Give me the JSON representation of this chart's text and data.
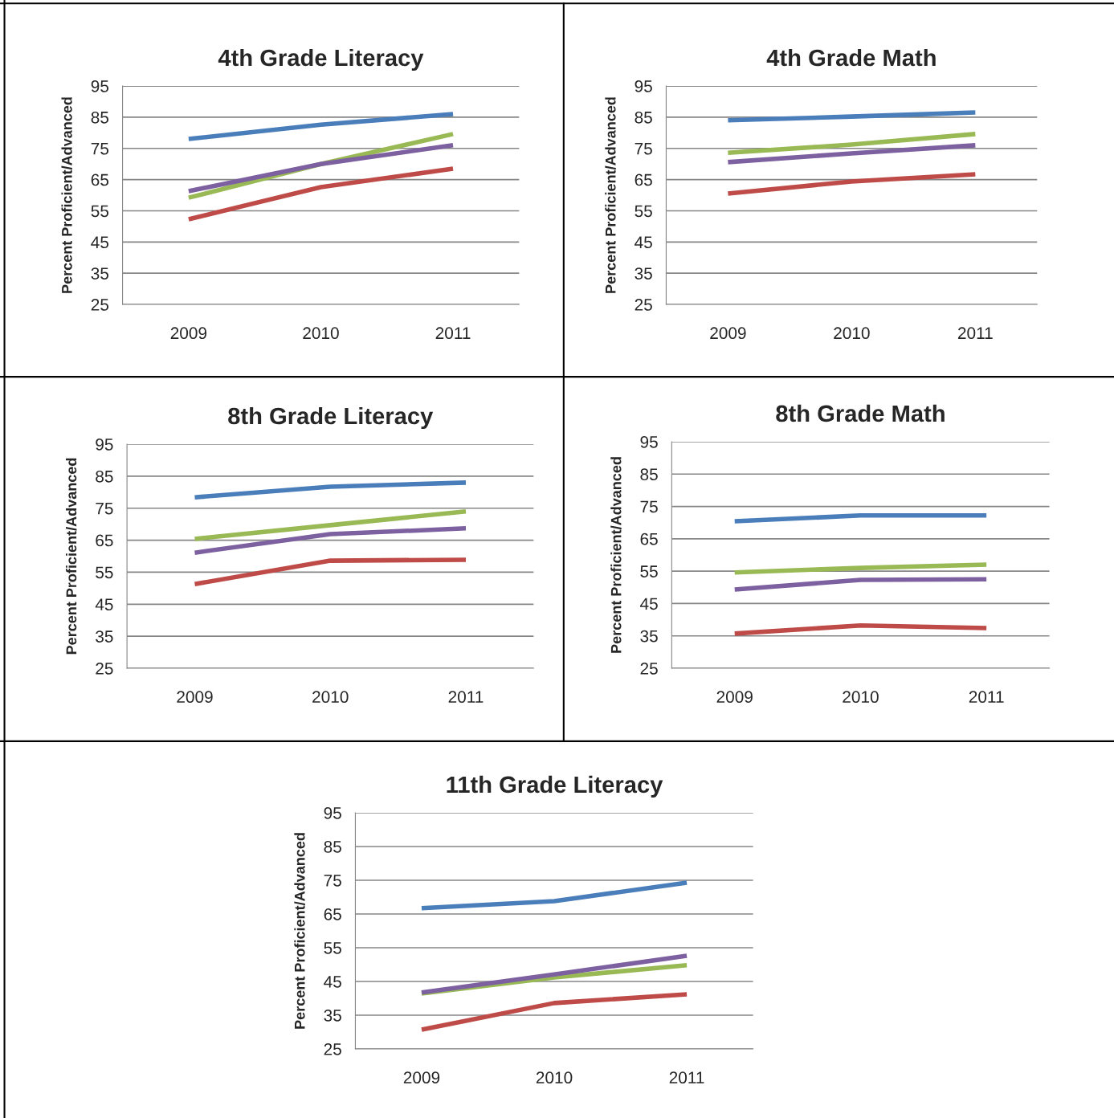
{
  "chart_data": [
    {
      "type": "line",
      "title": "4th Grade Literacy",
      "ylabel": "Percent Proficient/Advanced",
      "categories": [
        "2009",
        "2010",
        "2011"
      ],
      "ylim": [
        25,
        95
      ],
      "yticks": [
        25,
        35,
        45,
        55,
        65,
        75,
        85,
        95
      ],
      "grid": "y",
      "legend": false,
      "marker": "none",
      "line_style": "solid",
      "series": [
        {
          "color": "#4a7ebb",
          "values": [
            78,
            82.6,
            86
          ]
        },
        {
          "color": "#be4b48",
          "values": [
            52.3,
            62.6,
            68.5
          ]
        },
        {
          "color": "#98b954",
          "values": [
            59.2,
            70,
            79.6
          ]
        },
        {
          "color": "#7d60a0",
          "values": [
            61.3,
            70,
            76
          ]
        }
      ]
    },
    {
      "type": "line",
      "title": "4th Grade Math",
      "ylabel": "Percent Proficient/Advanced",
      "categories": [
        "2009",
        "2010",
        "2011"
      ],
      "ylim": [
        25,
        95
      ],
      "yticks": [
        25,
        35,
        45,
        55,
        65,
        75,
        85,
        95
      ],
      "grid": "y",
      "legend": false,
      "marker": "none",
      "line_style": "solid",
      "series": [
        {
          "color": "#4a7ebb",
          "values": [
            84,
            85.2,
            86.5
          ]
        },
        {
          "color": "#be4b48",
          "values": [
            60.5,
            64.4,
            66.7
          ]
        },
        {
          "color": "#98b954",
          "values": [
            73.6,
            76.2,
            79.6
          ]
        },
        {
          "color": "#7d60a0",
          "values": [
            70.6,
            73.4,
            76
          ]
        }
      ]
    },
    {
      "type": "line",
      "title": "8th Grade Literacy",
      "ylabel": "Percent Proficient/Advanced",
      "categories": [
        "2009",
        "2010",
        "2011"
      ],
      "ylim": [
        25,
        95
      ],
      "yticks": [
        25,
        35,
        45,
        55,
        65,
        75,
        85,
        95
      ],
      "grid": "y",
      "legend": false,
      "marker": "none",
      "line_style": "solid",
      "series": [
        {
          "color": "#4a7ebb",
          "values": [
            78.4,
            81.7,
            83
          ]
        },
        {
          "color": "#be4b48",
          "values": [
            51.3,
            58.6,
            58.9
          ]
        },
        {
          "color": "#98b954",
          "values": [
            65.4,
            69.7,
            74
          ]
        },
        {
          "color": "#7d60a0",
          "values": [
            61.1,
            66.9,
            68.7
          ]
        }
      ]
    },
    {
      "type": "line",
      "title": "8th Grade Math",
      "ylabel": "Percent Proficient/Advanced",
      "categories": [
        "2009",
        "2010",
        "2011"
      ],
      "ylim": [
        25,
        95
      ],
      "yticks": [
        25,
        35,
        45,
        55,
        65,
        75,
        85,
        95
      ],
      "grid": "y",
      "legend": false,
      "marker": "none",
      "line_style": "solid",
      "series": [
        {
          "color": "#4a7ebb",
          "values": [
            70.4,
            72.2,
            72.2
          ]
        },
        {
          "color": "#be4b48",
          "values": [
            35.7,
            38.2,
            37.4
          ]
        },
        {
          "color": "#98b954",
          "values": [
            54.6,
            56,
            57
          ]
        },
        {
          "color": "#7d60a0",
          "values": [
            49.3,
            52.3,
            52.5
          ]
        }
      ]
    },
    {
      "type": "line",
      "title": "11th Grade Literacy",
      "ylabel": "Percent Proficient/Advanced",
      "categories": [
        "2009",
        "2010",
        "2011"
      ],
      "ylim": [
        25,
        95
      ],
      "yticks": [
        25,
        35,
        45,
        55,
        65,
        75,
        85,
        95
      ],
      "grid": "y",
      "legend": false,
      "marker": "none",
      "line_style": "solid",
      "series": [
        {
          "color": "#4a7ebb",
          "values": [
            66.7,
            68.8,
            74.3
          ]
        },
        {
          "color": "#be4b48",
          "values": [
            30.7,
            38.6,
            41.2
          ]
        },
        {
          "color": "#98b954",
          "values": [
            41.4,
            46.2,
            49.8
          ]
        },
        {
          "color": "#7d60a0",
          "values": [
            41.7,
            47.1,
            52.6
          ]
        }
      ]
    }
  ]
}
